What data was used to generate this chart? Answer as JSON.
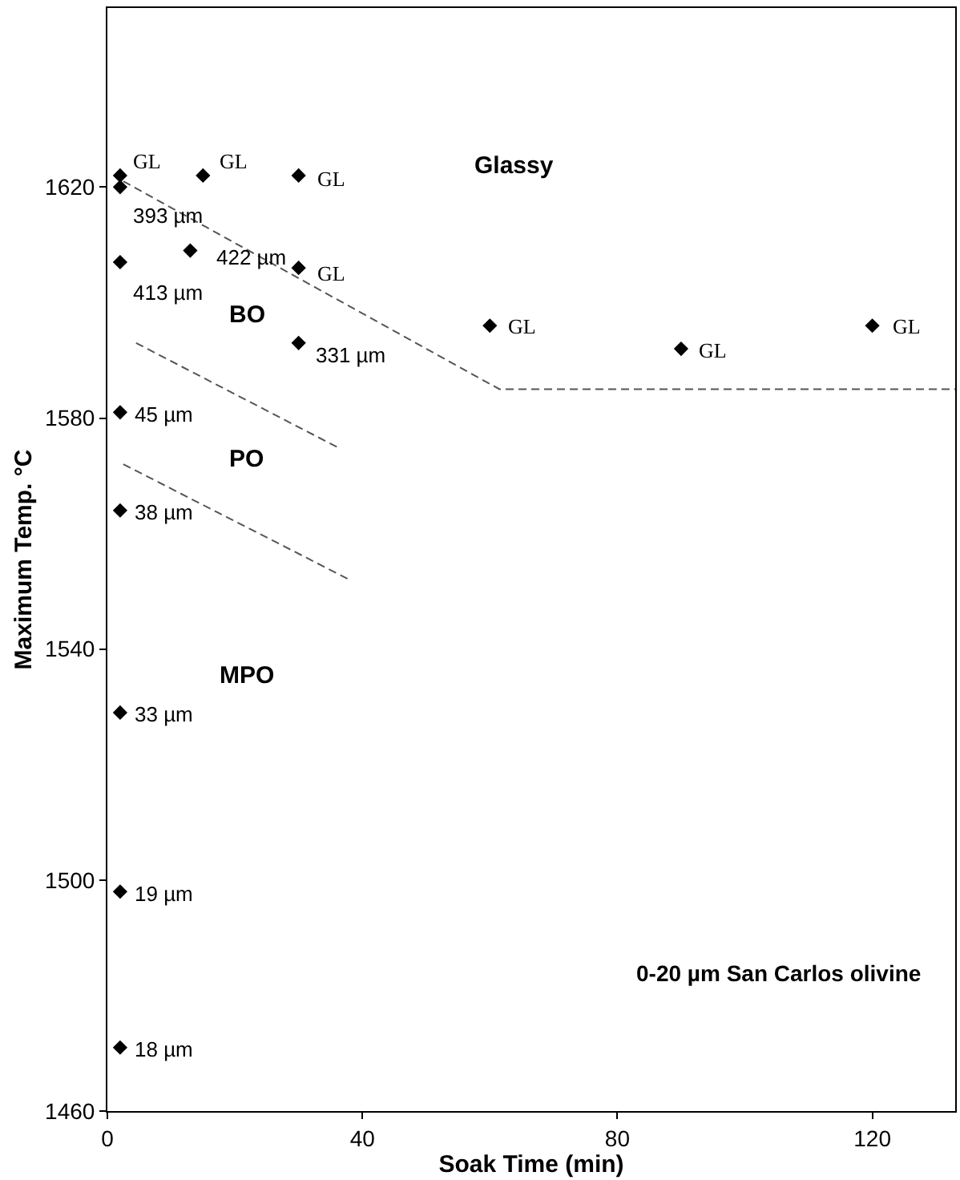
{
  "chart_data": {
    "type": "scatter",
    "xlabel": "Soak Time (min)",
    "ylabel": "Maximum Temp. °C",
    "xlim": [
      0,
      133
    ],
    "xticks": [
      0,
      40,
      80,
      120
    ],
    "ylim": [
      1460,
      1651
    ],
    "yticks": [
      1460,
      1500,
      1540,
      1580,
      1620
    ],
    "series": [
      {
        "marker": "diamond",
        "color": "#000000",
        "x": [
          2,
          2,
          15,
          30,
          2,
          13,
          30,
          30,
          60,
          90,
          120,
          2,
          2,
          2,
          2,
          2
        ],
        "values": [
          1622,
          1620,
          1622,
          1622,
          1607,
          1609,
          1606,
          1593,
          1596,
          1592,
          1596,
          1581,
          1564,
          1529,
          1498,
          1471
        ]
      },
      {
        "type": "line",
        "line_style": "dashed",
        "color": "#555555",
        "x": [
          2.5,
          61.5,
          133
        ],
        "values": [
          1621,
          1585,
          1585
        ]
      },
      {
        "type": "line",
        "line_style": "dashed",
        "color": "#555555",
        "x": [
          4.5,
          36
        ],
        "values": [
          1593,
          1575
        ]
      },
      {
        "type": "line",
        "line_style": "dashed",
        "color": "#555555",
        "x": [
          2.5,
          38
        ],
        "values": [
          1572,
          1552
        ]
      }
    ],
    "annotations": [
      {
        "text": "GL",
        "x": 2,
        "y": 1622
      },
      {
        "text": "393 µm",
        "x": 2,
        "y": 1620
      },
      {
        "text": "GL",
        "x": 15,
        "y": 1622
      },
      {
        "text": "GL",
        "x": 30,
        "y": 1622
      },
      {
        "text": "413 µm",
        "x": 2,
        "y": 1607
      },
      {
        "text": "422 µm",
        "x": 13,
        "y": 1609
      },
      {
        "text": "GL",
        "x": 30,
        "y": 1606
      },
      {
        "text": "331 µm",
        "x": 30,
        "y": 1593
      },
      {
        "text": "GL",
        "x": 60,
        "y": 1596
      },
      {
        "text": "GL",
        "x": 90,
        "y": 1592
      },
      {
        "text": "GL",
        "x": 120,
        "y": 1596
      },
      {
        "text": "45 µm",
        "x": 2,
        "y": 1581
      },
      {
        "text": "38 µm",
        "x": 2,
        "y": 1564
      },
      {
        "text": "33 µm",
        "x": 2,
        "y": 1529
      },
      {
        "text": "19 µm",
        "x": 2,
        "y": 1498
      },
      {
        "text": "18 µm",
        "x": 2,
        "y": 1471
      },
      "Glassy",
      "BO",
      "PO",
      "MPO",
      "0-20 µm San Carlos olivine"
    ]
  }
}
